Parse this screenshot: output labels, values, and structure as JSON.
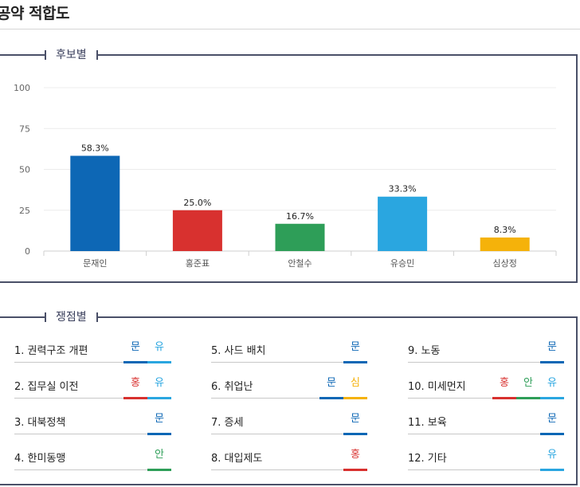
{
  "page_title": "공약 적합도",
  "candidates_section": {
    "title": "후보별"
  },
  "issues_section": {
    "title": "쟁점별"
  },
  "chart_data": {
    "type": "bar",
    "categories": [
      "문재인",
      "홍준표",
      "안철수",
      "유승민",
      "심상정"
    ],
    "values": [
      58.3,
      25.0,
      16.7,
      33.3,
      8.3
    ],
    "value_labels": [
      "58.3%",
      "25.0%",
      "16.7%",
      "33.3%",
      "8.3%"
    ],
    "colors": [
      "#0d67b5",
      "#d8312f",
      "#2e9e58",
      "#2aa6e0",
      "#f5b20a"
    ],
    "ylim": [
      0,
      100
    ],
    "yticks": [
      0,
      25,
      50,
      75,
      100
    ],
    "grid": true,
    "title": "",
    "xlabel": "",
    "ylabel": ""
  },
  "party_colors": {
    "문": "#0d67b5",
    "홍": "#d8312f",
    "안": "#2e9e58",
    "유": "#2aa6e0",
    "심": "#f5b20a"
  },
  "issues": [
    {
      "label": "1. 권력구조 개편",
      "tags": [
        "문",
        "유"
      ]
    },
    {
      "label": "2. 집무실 이전",
      "tags": [
        "홍",
        "유"
      ]
    },
    {
      "label": "3. 대북정책",
      "tags": [
        "문"
      ]
    },
    {
      "label": "4. 한미동맹",
      "tags": [
        "안"
      ]
    },
    {
      "label": "5. 사드 배치",
      "tags": [
        "문"
      ]
    },
    {
      "label": "6. 취업난",
      "tags": [
        "문",
        "심"
      ]
    },
    {
      "label": "7. 증세",
      "tags": [
        "문"
      ]
    },
    {
      "label": "8. 대입제도",
      "tags": [
        "홍"
      ]
    },
    {
      "label": "9. 노동",
      "tags": [
        "문"
      ]
    },
    {
      "label": "10. 미세먼지",
      "tags": [
        "홍",
        "안",
        "유"
      ]
    },
    {
      "label": "11. 보육",
      "tags": [
        "문"
      ]
    },
    {
      "label": "12. 기타",
      "tags": [
        "유"
      ]
    }
  ]
}
